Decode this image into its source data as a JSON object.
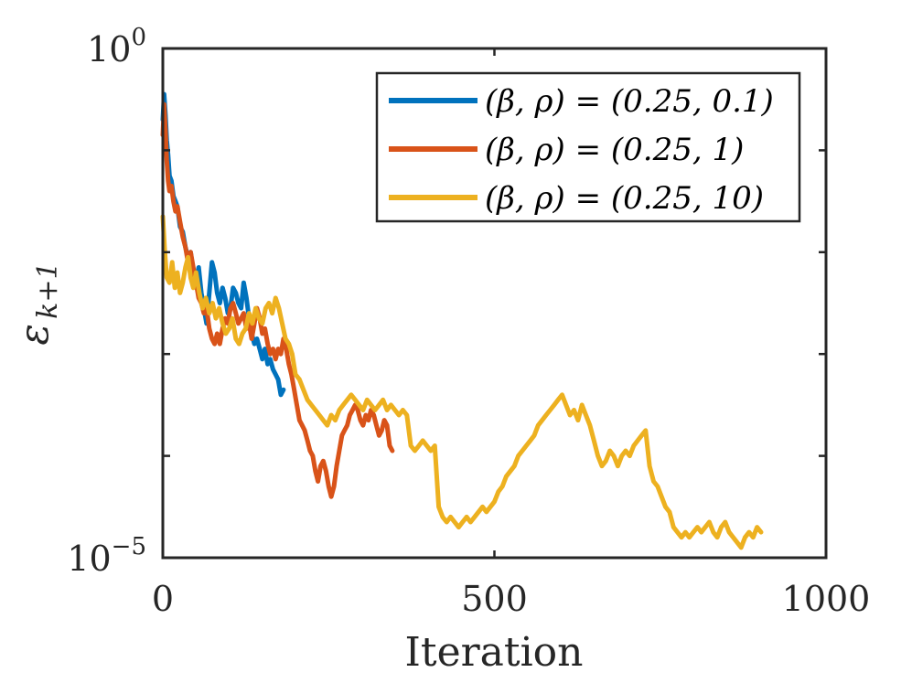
{
  "chart_data": {
    "type": "line",
    "title": "",
    "xlabel": "Iteration",
    "ylabel": "ε_{k+1}",
    "ylabel_main": "ε",
    "ylabel_sub": "k+1",
    "xlim": [
      0,
      1000
    ],
    "ylim_log10": [
      -5,
      0
    ],
    "yscale": "log",
    "x_ticks": [
      0,
      500,
      1000
    ],
    "x_tick_labels": [
      "0",
      "500",
      "1000"
    ],
    "y_tick_labels": [
      {
        "exp": -5,
        "base": "10",
        "power": "−5"
      },
      {
        "exp": 0,
        "base": "10",
        "power": "0"
      }
    ],
    "grid": false,
    "legend_position": "top-right",
    "series": [
      {
        "name": "(β, ρ) = (0.25, 0.1)",
        "color": "#0072BD",
        "x": [
          0,
          2,
          4,
          6,
          8,
          10,
          13,
          16,
          19,
          22,
          26,
          30,
          34,
          38,
          42,
          46,
          50,
          54,
          58,
          62,
          66,
          70,
          74,
          78,
          82,
          86,
          90,
          94,
          98,
          102,
          106,
          110,
          114,
          118,
          122,
          126,
          130,
          134,
          138,
          142,
          146,
          150,
          154,
          158,
          162,
          166,
          170,
          174,
          178,
          182
        ],
        "log10_y": [
          -0.7,
          -0.45,
          -0.65,
          -0.9,
          -1.05,
          -1.25,
          -1.3,
          -1.45,
          -1.5,
          -1.55,
          -1.75,
          -1.8,
          -1.95,
          -2.05,
          -2.0,
          -2.2,
          -2.3,
          -2.15,
          -2.4,
          -2.55,
          -2.7,
          -2.4,
          -2.1,
          -2.2,
          -2.4,
          -2.5,
          -2.35,
          -2.45,
          -2.6,
          -2.55,
          -2.35,
          -2.4,
          -2.5,
          -2.55,
          -2.3,
          -2.45,
          -2.65,
          -2.8,
          -2.9,
          -2.85,
          -2.95,
          -3.05,
          -2.95,
          -3.1,
          -3.05,
          -3.15,
          -3.2,
          -3.25,
          -3.4,
          -3.35
        ]
      },
      {
        "name": "(β, ρ) = (0.25, 1)",
        "color": "#D95319",
        "x": [
          0,
          2,
          4,
          6,
          8,
          10,
          13,
          16,
          19,
          22,
          26,
          30,
          34,
          38,
          42,
          46,
          50,
          54,
          58,
          62,
          66,
          70,
          74,
          78,
          82,
          86,
          90,
          94,
          98,
          102,
          106,
          110,
          114,
          118,
          122,
          126,
          130,
          134,
          138,
          142,
          146,
          150,
          154,
          158,
          162,
          166,
          170,
          174,
          178,
          182,
          186,
          190,
          194,
          198,
          202,
          206,
          210,
          214,
          218,
          222,
          226,
          230,
          234,
          238,
          242,
          246,
          250,
          254,
          258,
          262,
          266,
          270,
          274,
          278,
          282,
          286,
          290,
          294,
          298,
          302,
          306,
          310,
          314,
          318,
          322,
          326,
          330,
          334,
          338,
          342,
          346
        ],
        "log10_y": [
          -0.85,
          -0.55,
          -0.8,
          -1.1,
          -1.3,
          -1.4,
          -1.35,
          -1.5,
          -1.6,
          -1.55,
          -1.7,
          -1.85,
          -1.95,
          -2.1,
          -2.0,
          -2.15,
          -2.3,
          -2.45,
          -2.5,
          -2.6,
          -2.55,
          -2.75,
          -2.85,
          -2.9,
          -2.8,
          -2.9,
          -2.75,
          -2.65,
          -2.7,
          -2.55,
          -2.5,
          -2.6,
          -2.7,
          -2.65,
          -2.6,
          -2.75,
          -2.7,
          -2.85,
          -2.7,
          -2.55,
          -2.65,
          -2.8,
          -2.75,
          -2.9,
          -3.0,
          -2.95,
          -3.05,
          -2.95,
          -3.0,
          -2.85,
          -2.95,
          -3.1,
          -3.2,
          -3.35,
          -3.5,
          -3.65,
          -3.7,
          -3.75,
          -3.85,
          -3.95,
          -4.0,
          -4.15,
          -4.25,
          -4.1,
          -4.05,
          -4.15,
          -4.3,
          -4.4,
          -4.3,
          -4.1,
          -3.95,
          -3.8,
          -3.75,
          -3.7,
          -3.6,
          -3.55,
          -3.5,
          -3.55,
          -3.65,
          -3.7,
          -3.6,
          -3.65,
          -3.55,
          -3.6,
          -3.7,
          -3.8,
          -3.75,
          -3.65,
          -3.7,
          -3.9,
          -3.95
        ]
      },
      {
        "name": "(β, ρ) = (0.25, 10)",
        "color": "#EDB120",
        "x": [
          0,
          3,
          6,
          10,
          14,
          18,
          22,
          26,
          30,
          34,
          38,
          42,
          46,
          50,
          55,
          60,
          65,
          70,
          75,
          80,
          85,
          90,
          95,
          100,
          105,
          110,
          115,
          120,
          125,
          130,
          135,
          140,
          145,
          150,
          155,
          160,
          165,
          170,
          175,
          180,
          185,
          190,
          195,
          200,
          206,
          212,
          218,
          224,
          230,
          236,
          242,
          248,
          254,
          260,
          266,
          272,
          278,
          284,
          290,
          296,
          302,
          308,
          314,
          320,
          326,
          332,
          338,
          344,
          350,
          356,
          362,
          368,
          374,
          380,
          386,
          392,
          398,
          404,
          410,
          416,
          422,
          428,
          434,
          440,
          446,
          452,
          458,
          464,
          470,
          476,
          482,
          488,
          494,
          500,
          506,
          512,
          518,
          524,
          530,
          536,
          542,
          548,
          554,
          560,
          566,
          572,
          578,
          584,
          590,
          596,
          602,
          608,
          614,
          620,
          626,
          632,
          638,
          644,
          650,
          656,
          662,
          668,
          674,
          680,
          686,
          692,
          698,
          704,
          710,
          716,
          722,
          728,
          734,
          740,
          746,
          752,
          758,
          764,
          770,
          776,
          782,
          788,
          794,
          800,
          806,
          812,
          818,
          824,
          830,
          836,
          842,
          848,
          854,
          860,
          866,
          872,
          878,
          884,
          890,
          896,
          902
        ],
        "log10_y": [
          -1.65,
          -2.0,
          -2.25,
          -2.3,
          -2.1,
          -2.35,
          -2.2,
          -2.4,
          -2.3,
          -2.15,
          -2.05,
          -2.25,
          -2.35,
          -2.2,
          -2.4,
          -2.55,
          -2.45,
          -2.6,
          -2.5,
          -2.65,
          -2.55,
          -2.7,
          -2.8,
          -2.75,
          -2.65,
          -2.85,
          -2.9,
          -2.8,
          -2.75,
          -2.6,
          -2.7,
          -2.55,
          -2.65,
          -2.7,
          -2.55,
          -2.5,
          -2.6,
          -2.45,
          -2.55,
          -2.7,
          -2.85,
          -2.9,
          -3.0,
          -3.2,
          -3.25,
          -3.35,
          -3.45,
          -3.5,
          -3.55,
          -3.6,
          -3.65,
          -3.7,
          -3.6,
          -3.65,
          -3.55,
          -3.5,
          -3.45,
          -3.4,
          -3.45,
          -3.5,
          -3.55,
          -3.45,
          -3.5,
          -3.55,
          -3.5,
          -3.45,
          -3.55,
          -3.5,
          -3.55,
          -3.6,
          -3.55,
          -3.6,
          -3.9,
          -3.95,
          -3.9,
          -3.85,
          -3.9,
          -3.95,
          -3.9,
          -4.5,
          -4.6,
          -4.65,
          -4.6,
          -4.65,
          -4.7,
          -4.65,
          -4.6,
          -4.65,
          -4.6,
          -4.55,
          -4.5,
          -4.55,
          -4.5,
          -4.45,
          -4.35,
          -4.3,
          -4.2,
          -4.15,
          -4.1,
          -4.0,
          -3.95,
          -3.9,
          -3.85,
          -3.8,
          -3.7,
          -3.65,
          -3.6,
          -3.55,
          -3.5,
          -3.45,
          -3.4,
          -3.5,
          -3.6,
          -3.55,
          -3.65,
          -3.5,
          -3.6,
          -3.7,
          -3.85,
          -4.0,
          -4.1,
          -4.05,
          -3.95,
          -4.0,
          -4.1,
          -4.0,
          -3.95,
          -4.0,
          -3.9,
          -3.85,
          -3.8,
          -3.75,
          -4.1,
          -4.25,
          -4.3,
          -4.4,
          -4.5,
          -4.55,
          -4.7,
          -4.75,
          -4.8,
          -4.75,
          -4.8,
          -4.75,
          -4.7,
          -4.75,
          -4.7,
          -4.65,
          -4.75,
          -4.8,
          -4.7,
          -4.65,
          -4.75,
          -4.8,
          -4.85,
          -4.9,
          -4.8,
          -4.75,
          -4.8,
          -4.7,
          -4.75
        ]
      }
    ]
  }
}
